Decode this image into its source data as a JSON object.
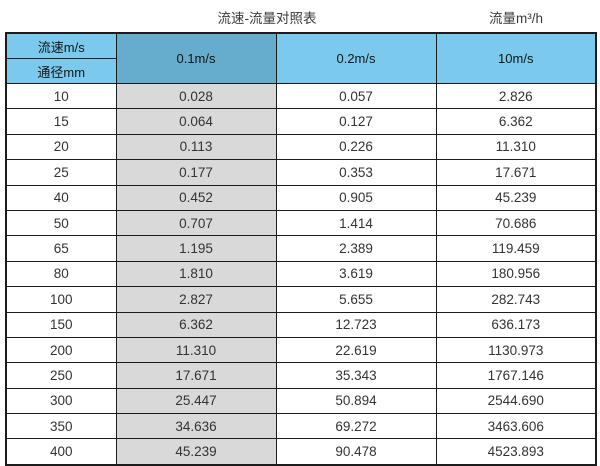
{
  "caption": {
    "title": "流速-流量对照表",
    "unit_label": "流量m³/h"
  },
  "colors": {
    "header_light_blue": "#7bcaed",
    "header_dark_blue": "#66accd",
    "first_value_column_gray": "#d9d9d9",
    "border": "#1c1c1c",
    "background": "#ffffff"
  },
  "chart_data": {
    "type": "table",
    "title": "流速-流量对照表",
    "unit_label": "流量m³/h",
    "corner_top": "流速m/s",
    "corner_bottom": "通径mm",
    "velocity_columns": [
      "0.1m/s",
      "0.2m/s",
      "10m/s"
    ],
    "diameters_mm": [
      "10",
      "15",
      "20",
      "25",
      "40",
      "50",
      "65",
      "80",
      "100",
      "150",
      "200",
      "250",
      "300",
      "350",
      "400"
    ],
    "series": [
      {
        "name": "0.1m/s",
        "values": [
          "0.028",
          "0.064",
          "0.113",
          "0.177",
          "0.452",
          "0.707",
          "1.195",
          "1.810",
          "2.827",
          "6.362",
          "11.310",
          "17.671",
          "25.447",
          "34.636",
          "45.239"
        ]
      },
      {
        "name": "0.2m/s",
        "values": [
          "0.057",
          "0.127",
          "0.226",
          "0.353",
          "0.905",
          "1.414",
          "2.389",
          "3.619",
          "5.655",
          "12.723",
          "22.619",
          "35.343",
          "50.894",
          "69.272",
          "90.478"
        ]
      },
      {
        "name": "10m/s",
        "values": [
          "2.826",
          "6.362",
          "11.310",
          "17.671",
          "45.239",
          "70.686",
          "119.459",
          "180.956",
          "282.743",
          "636.173",
          "1130.973",
          "1767.146",
          "2544.690",
          "3463.606",
          "4523.893"
        ]
      }
    ],
    "layout_hints": {
      "first_column_header_split": true,
      "highlighted_header_column": "0.1m/s",
      "highlighted_value_column": "0.1m/s",
      "grid": true
    }
  }
}
